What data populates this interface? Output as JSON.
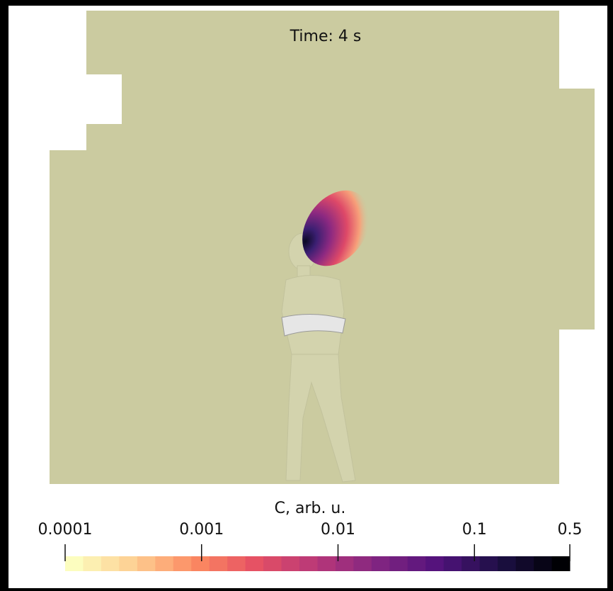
{
  "overlay": {
    "title": "Time: 4 s"
  },
  "colorbar": {
    "label": "C, arb. u.",
    "lim": [
      0.0001,
      0.5
    ],
    "ticks": [
      0.0001,
      0.001,
      0.01,
      0.1,
      0.5
    ],
    "scale": "log"
  }
}
